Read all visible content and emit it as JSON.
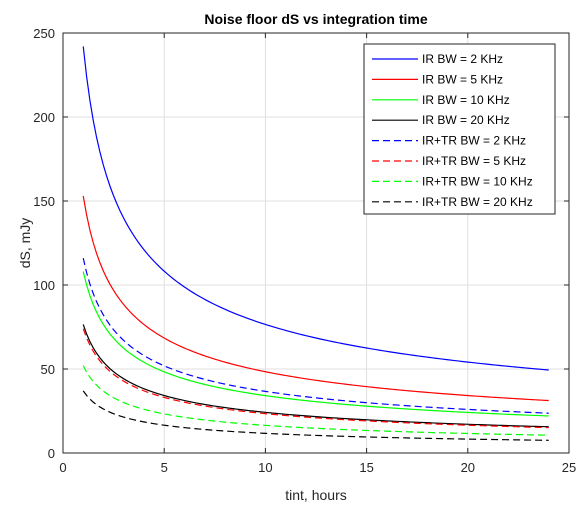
{
  "chart_data": {
    "type": "line",
    "title": "Noise floor dS vs integration time",
    "xlabel": "tint, hours",
    "ylabel": "dS, mJy",
    "xlim": [
      0,
      25
    ],
    "ylim": [
      0,
      250
    ],
    "xticks": [
      0,
      5,
      10,
      15,
      20,
      25
    ],
    "yticks": [
      0,
      50,
      100,
      150,
      200,
      250
    ],
    "grid": true,
    "legend_position": "top-right",
    "x_range": [
      1,
      24
    ],
    "curve_model": "y = c / sqrt(x)",
    "series": [
      {
        "name": "IR BW = 2 KHz",
        "color": "#0000ff",
        "style": "solid",
        "value_at_x1": 242,
        "x": [
          1,
          2,
          4,
          8,
          16,
          24
        ],
        "y": [
          242,
          171.1,
          121,
          85.6,
          60.5,
          49.4
        ]
      },
      {
        "name": "IR BW = 5 KHz",
        "color": "#ff0000",
        "style": "solid",
        "value_at_x1": 153,
        "x": [
          1,
          2,
          4,
          8,
          16,
          24
        ],
        "y": [
          153,
          108.2,
          76.5,
          54.1,
          38.3,
          31.2
        ]
      },
      {
        "name": "IR BW = 10 KHz",
        "color": "#00ff00",
        "style": "solid",
        "value_at_x1": 108,
        "x": [
          1,
          2,
          4,
          8,
          16,
          24
        ],
        "y": [
          108,
          76.4,
          54,
          38.2,
          27,
          22
        ]
      },
      {
        "name": "IR BW = 20 KHz",
        "color": "#000000",
        "style": "solid",
        "value_at_x1": 76.5,
        "x": [
          1,
          2,
          4,
          8,
          16,
          24
        ],
        "y": [
          76.5,
          54.1,
          38.3,
          27,
          19.1,
          15.6
        ]
      },
      {
        "name": "IR+TR BW = 2 KHz",
        "color": "#0000ff",
        "style": "dashed",
        "value_at_x1": 116,
        "x": [
          1,
          2,
          4,
          8,
          16,
          24
        ],
        "y": [
          116,
          82,
          58,
          41,
          29,
          23.7
        ]
      },
      {
        "name": "IR+TR BW = 5 KHz",
        "color": "#ff0000",
        "style": "dashed",
        "value_at_x1": 74,
        "x": [
          1,
          2,
          4,
          8,
          16,
          24
        ],
        "y": [
          74,
          52.3,
          37,
          26.2,
          18.5,
          15.1
        ]
      },
      {
        "name": "IR+TR BW = 10 KHz",
        "color": "#00ff00",
        "style": "dashed",
        "value_at_x1": 52,
        "x": [
          1,
          2,
          4,
          8,
          16,
          24
        ],
        "y": [
          52,
          36.8,
          26,
          18.4,
          13,
          10.6
        ]
      },
      {
        "name": "IR+TR BW = 20 KHz",
        "color": "#000000",
        "style": "dashed",
        "value_at_x1": 37,
        "x": [
          1,
          2,
          4,
          8,
          16,
          24
        ],
        "y": [
          37,
          26.2,
          18.5,
          13.1,
          9.3,
          7.6
        ]
      }
    ]
  }
}
